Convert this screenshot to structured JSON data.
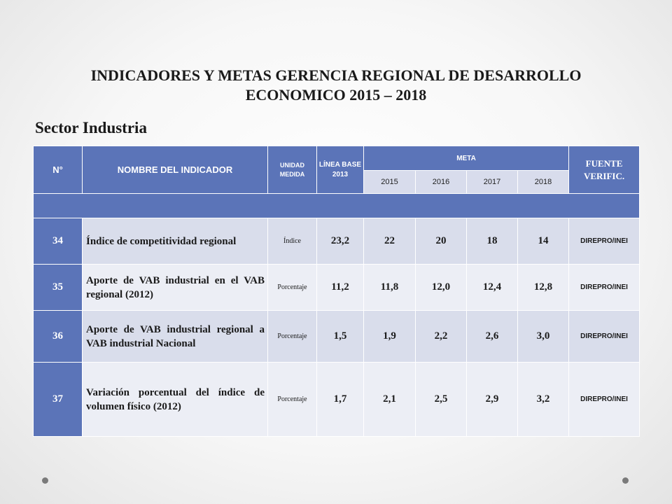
{
  "title": "INDICADORES Y METAS GERENCIA REGIONAL DE DESARROLLO ECONOMICO 2015 – 2018",
  "subtitle": "Sector Industria",
  "headers": {
    "n": "N°",
    "name": "NOMBRE DEL INDICADOR",
    "unit": "UNIDAD MEDIDA",
    "base": "LÍNEA BASE 2013",
    "meta": "META",
    "source": "FUENTE VERIFIC.",
    "years": [
      "2015",
      "2016",
      "2017",
      "2018"
    ]
  },
  "rows": [
    {
      "n": "34",
      "name": "Índice de competitividad regional",
      "unit": "Índice",
      "base": "23,2",
      "y2015": "22",
      "y2016": "20",
      "y2017": "18",
      "y2018": "14",
      "source": "DIREPRO/INEI"
    },
    {
      "n": "35",
      "name": "Aporte de VAB industrial en el VAB regional (2012)",
      "unit": "Porcentaje",
      "base": "11,2",
      "y2015": "11,8",
      "y2016": "12,0",
      "y2017": "12,4",
      "y2018": "12,8",
      "source": "DIREPRO/INEI"
    },
    {
      "n": "36",
      "name": "Aporte de VAB industrial regional a VAB industrial Nacional",
      "unit": "Porcentaje",
      "base": "1,5",
      "y2015": "1,9",
      "y2016": "2,2",
      "y2017": "2,6",
      "y2018": "3,0",
      "source": "DIREPRO/INEI"
    },
    {
      "n": "37",
      "name": "Variación porcentual del índice de volumen físico (2012)",
      "unit": "Porcentaje",
      "base": "1,7",
      "y2015": "2,1",
      "y2016": "2,5",
      "y2017": "2,9",
      "y2018": "3,2",
      "source": "DIREPRO/INEI"
    }
  ]
}
